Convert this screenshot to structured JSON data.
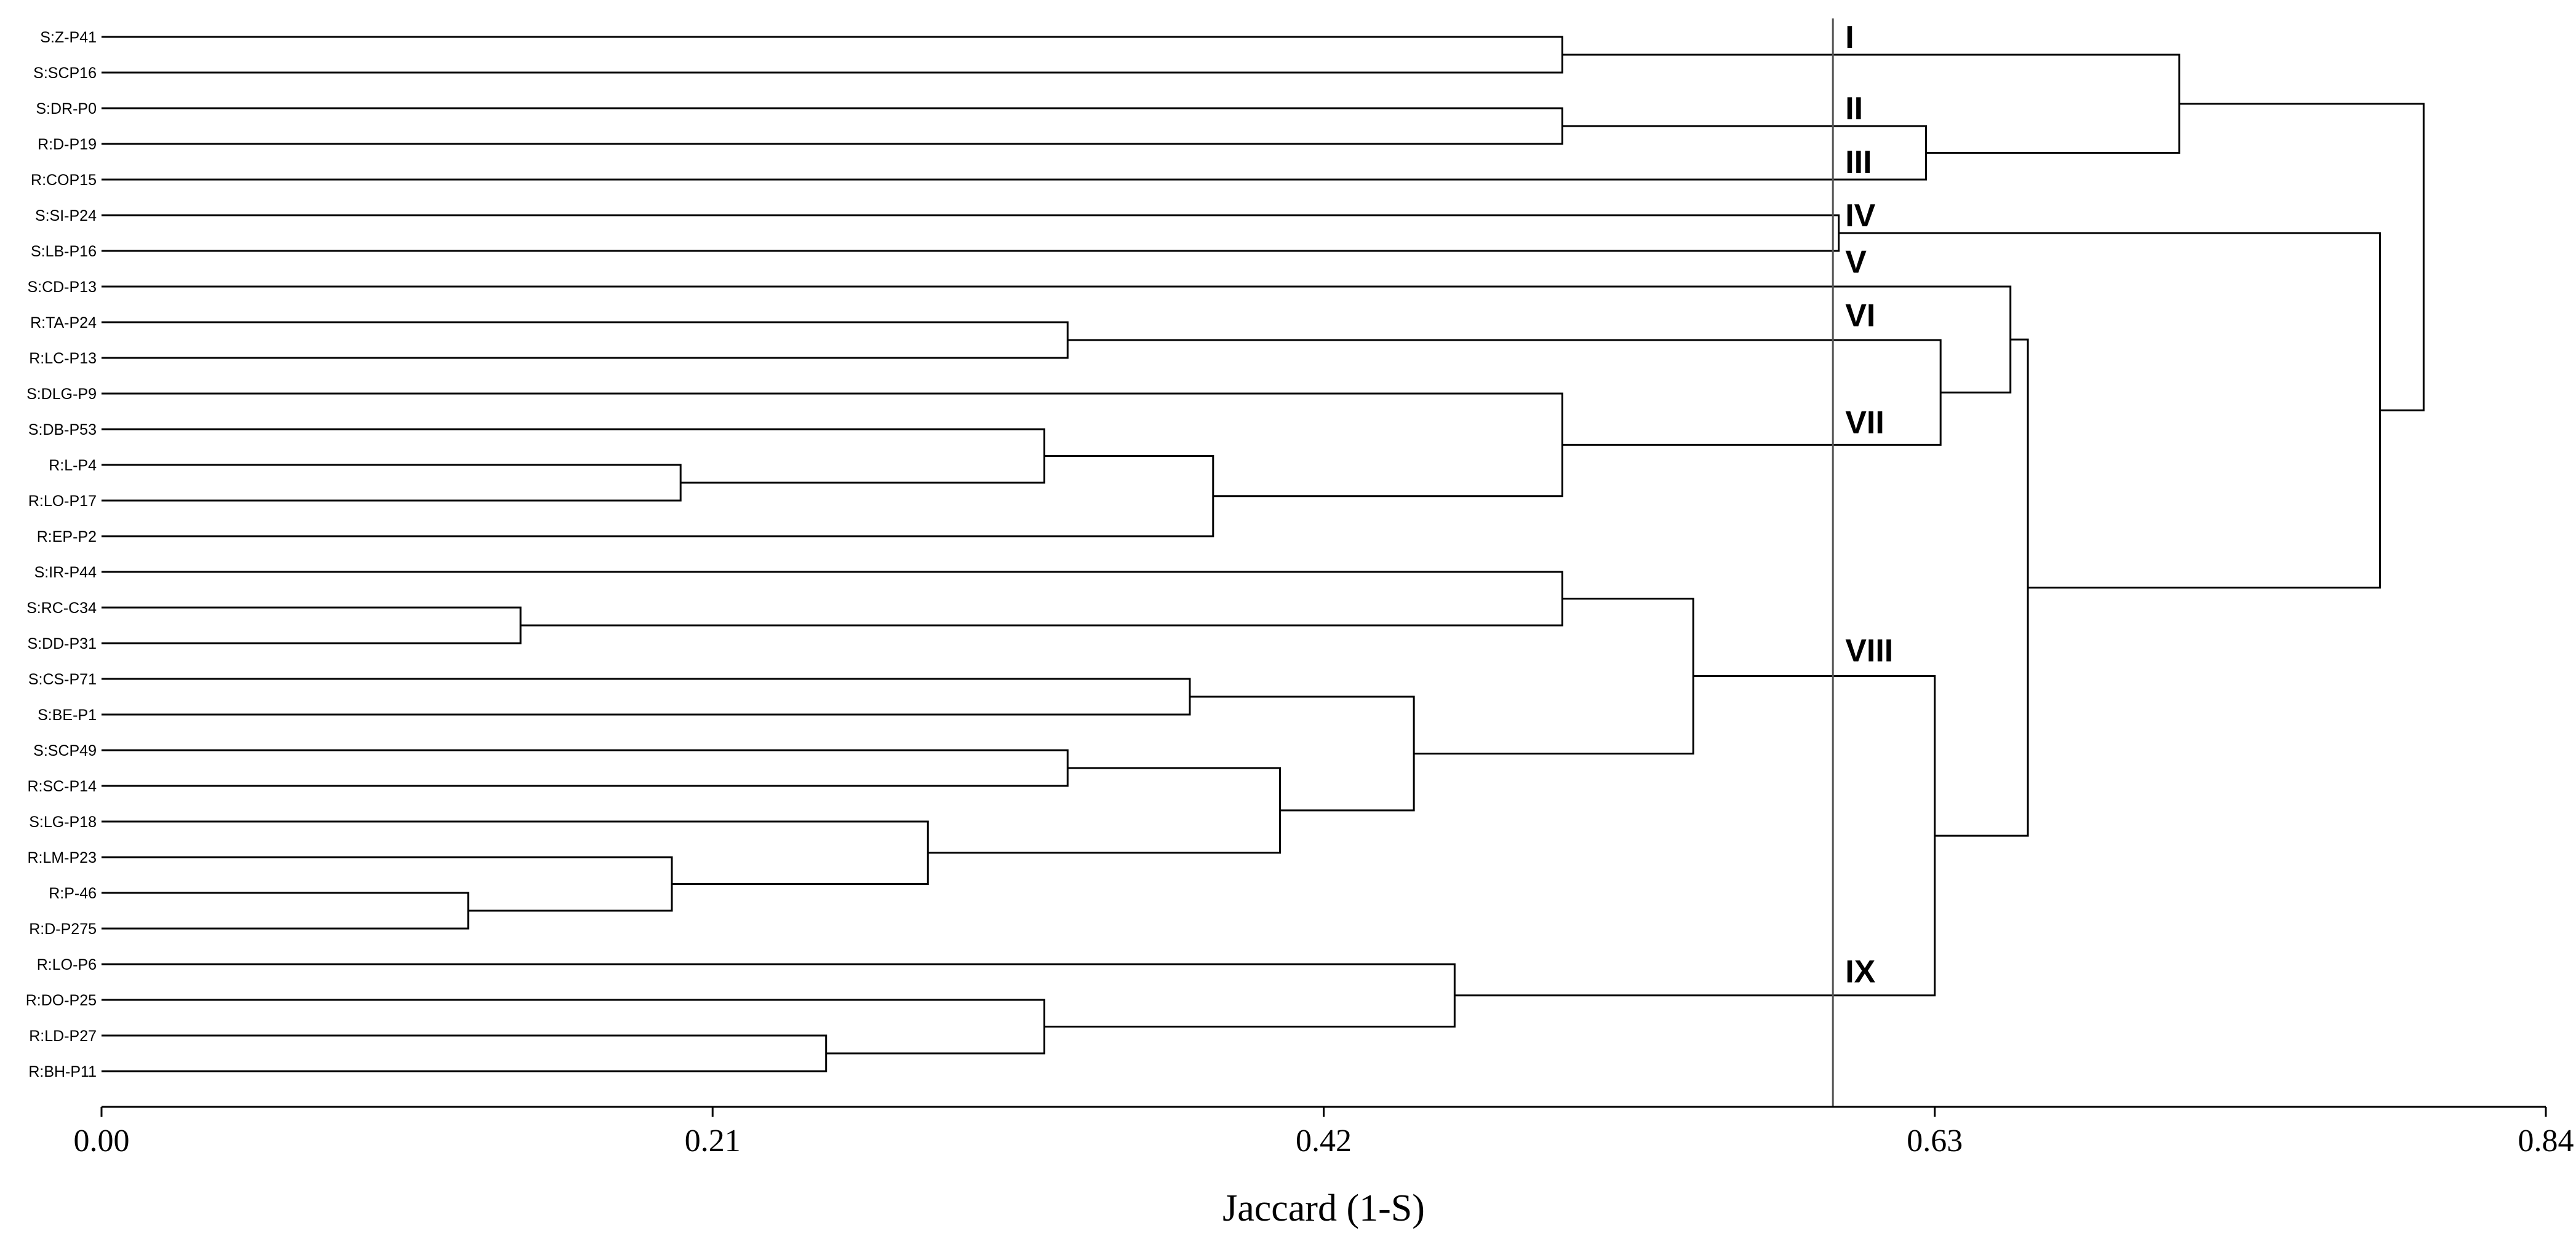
{
  "chart_data": {
    "type": "dendrogram",
    "xlabel": "Jaccard (1-S)",
    "xlim": [
      0.0,
      0.84
    ],
    "x_ticks": [
      "0.00",
      "0.21",
      "0.42",
      "0.63",
      "0.84"
    ],
    "x_tick_values": [
      0.0,
      0.21,
      0.42,
      0.63,
      0.84
    ],
    "cut_value": 0.595,
    "leaves": [
      "S:Z-P41",
      "S:SCP16",
      "S:DR-P0",
      "R:D-P19",
      "R:COP15",
      "S:SI-P24",
      "S:LB-P16",
      "S:CD-P13",
      "R:TA-P24",
      "R:LC-P13",
      "S:DLG-P9",
      "S:DB-P53",
      "R:L-P4",
      "R:LO-P17",
      "R:EP-P2",
      "S:IR-P44",
      "S:RC-C34",
      "S:DD-P31",
      "S:CS-P71",
      "S:BE-P1",
      "S:SCP49",
      "R:SC-P14",
      "S:LG-P18",
      "R:LM-P23",
      "R:P-46",
      "R:D-P275",
      "R:LO-P6",
      "R:DO-P25",
      "R:LD-P27",
      "R:BH-P11"
    ],
    "merges": [
      {
        "id": "n1",
        "a": 0,
        "b": 1,
        "h": 0.502
      },
      {
        "id": "n2",
        "a": 2,
        "b": 3,
        "h": 0.502
      },
      {
        "id": "n3",
        "a": "n2",
        "b": 4,
        "h": 0.627
      },
      {
        "id": "n4",
        "a": "n1",
        "b": "n3",
        "h": 0.714
      },
      {
        "id": "n5",
        "a": 5,
        "b": 6,
        "h": 0.597
      },
      {
        "id": "n6",
        "a": 8,
        "b": 9,
        "h": 0.332
      },
      {
        "id": "n7",
        "a": 12,
        "b": 13,
        "h": 0.199
      },
      {
        "id": "n8",
        "a": 11,
        "b": "n7",
        "h": 0.324
      },
      {
        "id": "n9",
        "a": "n8",
        "b": 14,
        "h": 0.382
      },
      {
        "id": "n10",
        "a": 10,
        "b": "n9",
        "h": 0.502
      },
      {
        "id": "n11",
        "a": "n6",
        "b": "n10",
        "h": 0.632
      },
      {
        "id": "n12",
        "a": 7,
        "b": "n11",
        "h": 0.656
      },
      {
        "id": "n13",
        "a": 16,
        "b": 17,
        "h": 0.144
      },
      {
        "id": "n14",
        "a": 15,
        "b": "n13",
        "h": 0.502
      },
      {
        "id": "n15",
        "a": 18,
        "b": 19,
        "h": 0.374
      },
      {
        "id": "n16",
        "a": 20,
        "b": 21,
        "h": 0.332
      },
      {
        "id": "n17",
        "a": 24,
        "b": 25,
        "h": 0.126
      },
      {
        "id": "n18",
        "a": 23,
        "b": "n17",
        "h": 0.196
      },
      {
        "id": "n19",
        "a": 22,
        "b": "n18",
        "h": 0.284
      },
      {
        "id": "n20",
        "a": "n16",
        "b": "n19",
        "h": 0.405
      },
      {
        "id": "n21",
        "a": "n15",
        "b": "n20",
        "h": 0.451
      },
      {
        "id": "n22",
        "a": "n14",
        "b": "n21",
        "h": 0.547
      },
      {
        "id": "n23",
        "a": 28,
        "b": 29,
        "h": 0.249
      },
      {
        "id": "n24",
        "a": 27,
        "b": "n23",
        "h": 0.324
      },
      {
        "id": "n25",
        "a": 26,
        "b": "n24",
        "h": 0.465
      },
      {
        "id": "n26",
        "a": "n22",
        "b": "n25",
        "h": 0.63
      },
      {
        "id": "n27",
        "a": "n12",
        "b": "n26",
        "h": 0.662
      },
      {
        "id": "n28",
        "a": "n5",
        "b": "n27",
        "h": 0.783
      },
      {
        "id": "n29",
        "a": "n4",
        "b": "n28",
        "h": 0.798
      }
    ],
    "clusters": [
      {
        "label": "I",
        "leaf": 0
      },
      {
        "label": "II",
        "leaf": 2
      },
      {
        "label": "III",
        "leaf": 3.5
      },
      {
        "label": "IV",
        "leaf": 5
      },
      {
        "label": "V",
        "leaf": 6.3
      },
      {
        "label": "VI",
        "leaf": 7.8
      },
      {
        "label": "VII",
        "leaf": 10.8
      },
      {
        "label": "VIII",
        "leaf": 17.2
      },
      {
        "label": "IX",
        "leaf": 26.2
      }
    ]
  }
}
